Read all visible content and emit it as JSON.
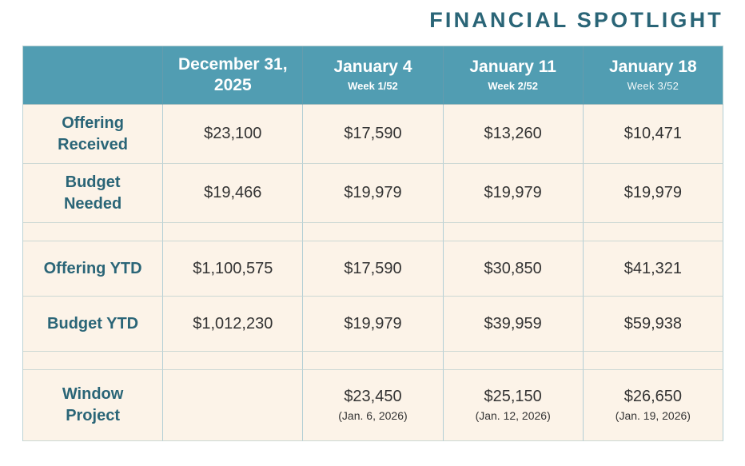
{
  "title": "FINANCIAL SPOTLIGHT",
  "colors": {
    "header_bg": "#519db2",
    "cell_bg": "#fcf3e8",
    "accent": "#2a6577",
    "value_text": "#333333"
  },
  "chart_data": {
    "type": "table",
    "title": "FINANCIAL SPOTLIGHT",
    "columns": [
      {
        "label": "",
        "sub": ""
      },
      {
        "label": "December 31, 2025",
        "sub": ""
      },
      {
        "label": "January 4",
        "sub": "Week 1/52"
      },
      {
        "label": "January 11",
        "sub": "Week 2/52"
      },
      {
        "label": "January 18",
        "sub": "Week 3/52"
      }
    ],
    "rows": [
      {
        "label": "Offering Received",
        "values": [
          "$23,100",
          "$17,590",
          "$13,260",
          "$10,471"
        ]
      },
      {
        "label": "Budget Needed",
        "values": [
          "$19,466",
          "$19,979",
          "$19,979",
          "$19,979"
        ]
      },
      {
        "label": "Offering YTD",
        "values": [
          "$1,100,575",
          "$17,590",
          "$30,850",
          "$41,321"
        ]
      },
      {
        "label": "Budget YTD",
        "values": [
          "$1,012,230",
          "$19,979",
          "$39,959",
          "$59,938"
        ]
      },
      {
        "label": "Window Project",
        "values": [
          "",
          "$23,450",
          "$25,150",
          "$26,650"
        ],
        "subvalues": [
          "",
          "(Jan. 6, 2026)",
          "(Jan. 12, 2026)",
          "(Jan. 19, 2026)"
        ]
      }
    ]
  }
}
